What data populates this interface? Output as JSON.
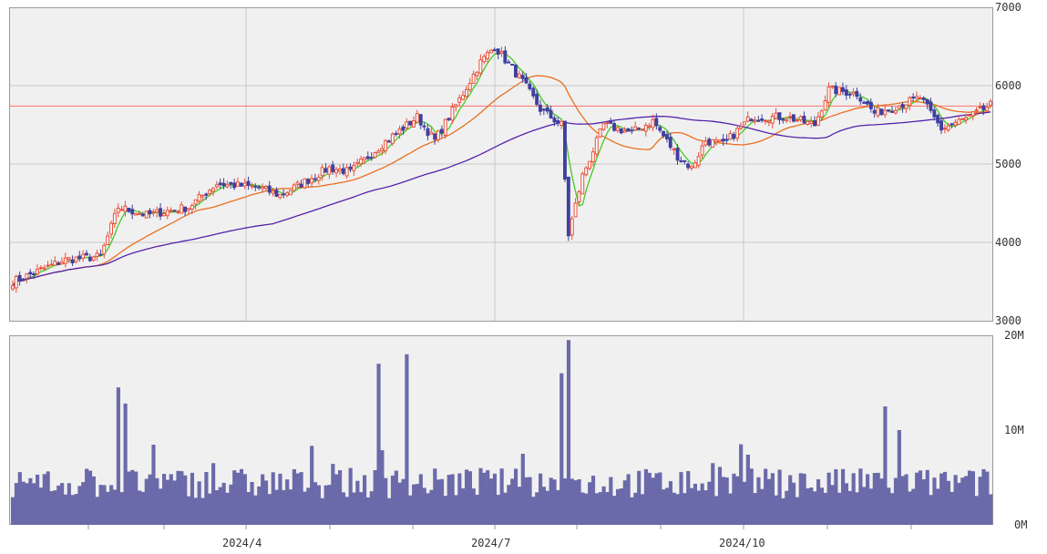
{
  "chart_data": {
    "type": "candlestick",
    "price_panel": {
      "y_axis_ticks": [
        "7000",
        "6000",
        "5000",
        "4000",
        "3000"
      ],
      "ylim": [
        3000,
        7000
      ],
      "reference_line": 5740,
      "colors": {
        "up": "#e8503a",
        "down": "#4040a0",
        "ma_short": "#44cc22",
        "ma_mid": "#e87020",
        "ma_long": "#5522aa",
        "reference": "#ff7070"
      }
    },
    "volume_panel": {
      "y_axis_ticks": [
        "20M",
        "10M",
        "0M"
      ],
      "ylim": [
        0,
        20
      ],
      "color": "#6a6aaa"
    },
    "x_axis_ticks": [
      "2024/4",
      "2024/7",
      "2024/10"
    ],
    "anchors": [
      {
        "t": 0,
        "p": 3500
      },
      {
        "t": 15,
        "p": 3780
      },
      {
        "t": 25,
        "p": 3820
      },
      {
        "t": 30,
        "p": 4450
      },
      {
        "t": 38,
        "p": 4350
      },
      {
        "t": 50,
        "p": 4450
      },
      {
        "t": 58,
        "p": 4750
      },
      {
        "t": 70,
        "p": 4700
      },
      {
        "t": 76,
        "p": 4600
      },
      {
        "t": 90,
        "p": 4950
      },
      {
        "t": 96,
        "p": 4900
      },
      {
        "t": 105,
        "p": 5250
      },
      {
        "t": 115,
        "p": 5600
      },
      {
        "t": 120,
        "p": 5300
      },
      {
        "t": 128,
        "p": 5900
      },
      {
        "t": 133,
        "p": 6300
      },
      {
        "t": 137,
        "p": 6500
      },
      {
        "t": 145,
        "p": 6050
      },
      {
        "t": 150,
        "p": 5700
      },
      {
        "t": 156,
        "p": 5500
      },
      {
        "t": 158,
        "p": 4100
      },
      {
        "t": 162,
        "p": 4850
      },
      {
        "t": 168,
        "p": 5500
      },
      {
        "t": 176,
        "p": 5400
      },
      {
        "t": 182,
        "p": 5550
      },
      {
        "t": 189,
        "p": 5100
      },
      {
        "t": 193,
        "p": 4950
      },
      {
        "t": 197,
        "p": 5300
      },
      {
        "t": 202,
        "p": 5250
      },
      {
        "t": 210,
        "p": 5600
      },
      {
        "t": 220,
        "p": 5600
      },
      {
        "t": 228,
        "p": 5500
      },
      {
        "t": 232,
        "p": 5950
      },
      {
        "t": 240,
        "p": 5900
      },
      {
        "t": 245,
        "p": 5650
      },
      {
        "t": 252,
        "p": 5750
      },
      {
        "t": 258,
        "p": 5850
      },
      {
        "t": 264,
        "p": 5450
      },
      {
        "t": 272,
        "p": 5600
      },
      {
        "t": 278,
        "p": 5750
      }
    ],
    "volume_spikes": [
      {
        "t": 30,
        "v": 14.5
      },
      {
        "t": 32,
        "v": 12.8
      },
      {
        "t": 104,
        "v": 17.0
      },
      {
        "t": 112,
        "v": 18.0
      },
      {
        "t": 158,
        "v": 19.5
      },
      {
        "t": 156,
        "v": 16.0
      },
      {
        "t": 145,
        "v": 7.5
      },
      {
        "t": 248,
        "v": 12.5
      },
      {
        "t": 252,
        "v": 10.0
      },
      {
        "t": 207,
        "v": 8.5
      }
    ],
    "num_sessions": 279
  }
}
